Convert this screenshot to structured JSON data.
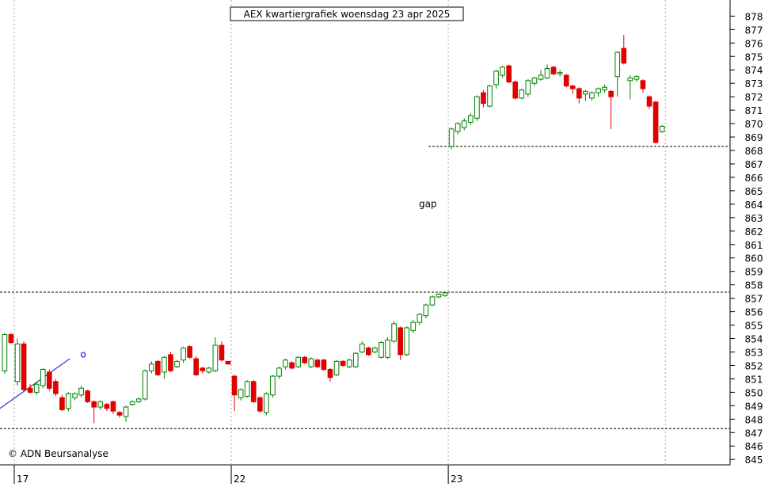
{
  "chart_data": {
    "type": "candlestick",
    "title": "AEX kwartiergrafiek woensdag 23 apr 2025",
    "source": "© ADN Beursanalyse",
    "up_color": "#008000",
    "down_color": "#e00000",
    "xlim": [
      -2.73,
      111.65
    ],
    "ylim": [
      844.6,
      879.2
    ],
    "xticks": [
      {
        "value": -0.5,
        "label": "17"
      },
      {
        "value": 33.5,
        "label": "22"
      },
      {
        "value": 67.5,
        "label": "23"
      }
    ],
    "xgrid": [
      -0.5,
      33.5,
      67.5,
      101.5
    ],
    "yticks": [
      845,
      846,
      847,
      848,
      849,
      850,
      851,
      852,
      853,
      854,
      855,
      856,
      857,
      858,
      859,
      860,
      861,
      862,
      863,
      864,
      865,
      866,
      867,
      868,
      869,
      870,
      871,
      872,
      873,
      874,
      875,
      876,
      877,
      878
    ],
    "x": [
      -2,
      -1,
      0,
      1,
      2,
      3,
      4,
      5,
      6,
      7,
      8,
      9,
      10,
      11,
      12,
      13,
      14,
      15,
      16,
      17,
      18,
      19,
      20,
      21,
      22,
      23,
      24,
      25,
      26,
      27,
      28,
      29,
      30,
      31,
      32,
      33,
      34,
      35,
      36,
      37,
      38,
      39,
      40,
      41,
      42,
      43,
      44,
      45,
      46,
      47,
      48,
      49,
      50,
      51,
      52,
      53,
      54,
      55,
      56,
      57,
      58,
      59,
      60,
      61,
      62,
      63,
      64,
      65,
      66,
      67,
      68,
      69,
      70,
      71,
      72,
      73,
      74,
      75,
      76,
      77,
      78,
      79,
      80,
      81,
      82,
      83,
      84,
      85,
      86,
      87,
      88,
      89,
      90,
      91,
      92,
      93,
      94,
      95,
      96,
      97,
      98,
      99,
      100,
      101
    ],
    "ohlc": [
      [
        851.6,
        854.4,
        851.4,
        854.3
      ],
      [
        854.3,
        854.4,
        853.6,
        853.7
      ],
      [
        850.8,
        854.0,
        850.5,
        853.6
      ],
      [
        853.6,
        853.8,
        850.0,
        850.2
      ],
      [
        850.3,
        850.6,
        849.9,
        850.0
      ],
      [
        850.0,
        850.8,
        849.8,
        850.6
      ],
      [
        850.5,
        851.8,
        850.3,
        851.7
      ],
      [
        851.5,
        851.7,
        850.1,
        850.3
      ],
      [
        850.8,
        851.0,
        849.7,
        849.9
      ],
      [
        849.6,
        849.8,
        848.6,
        848.7
      ],
      [
        848.8,
        850.0,
        848.6,
        849.9
      ],
      [
        849.6,
        850.0,
        849.4,
        849.9
      ],
      [
        849.8,
        850.5,
        849.6,
        850.3
      ],
      [
        850.1,
        850.2,
        849.2,
        849.3
      ],
      [
        849.3,
        849.4,
        847.7,
        848.9
      ],
      [
        848.9,
        849.4,
        848.7,
        849.3
      ],
      [
        849.1,
        849.2,
        848.6,
        848.8
      ],
      [
        849.3,
        849.4,
        848.4,
        848.6
      ],
      [
        848.5,
        848.6,
        848.1,
        848.3
      ],
      [
        848.2,
        849.0,
        847.8,
        848.9
      ],
      [
        849.1,
        849.4,
        849.0,
        849.3
      ],
      [
        849.3,
        849.6,
        849.2,
        849.5
      ],
      [
        849.5,
        851.7,
        849.4,
        851.6
      ],
      [
        851.6,
        852.3,
        851.4,
        852.1
      ],
      [
        852.3,
        852.4,
        851.2,
        851.3
      ],
      [
        851.5,
        852.7,
        851.0,
        852.6
      ],
      [
        852.8,
        853.0,
        851.5,
        851.6
      ],
      [
        851.9,
        852.4,
        851.8,
        852.3
      ],
      [
        852.4,
        853.4,
        852.2,
        853.3
      ],
      [
        853.4,
        853.5,
        852.5,
        852.6
      ],
      [
        852.5,
        852.7,
        851.2,
        851.3
      ],
      [
        851.8,
        851.9,
        851.4,
        851.6
      ],
      [
        851.5,
        851.9,
        851.4,
        851.8
      ],
      [
        851.6,
        854.1,
        851.5,
        853.5
      ],
      [
        853.5,
        853.8,
        852.3,
        852.4
      ],
      [
        852.3,
        852.3,
        852.1,
        852.1
      ],
      [
        851.2,
        851.3,
        848.6,
        849.8
      ],
      [
        849.6,
        850.3,
        849.4,
        850.2
      ],
      [
        849.7,
        850.9,
        849.6,
        850.8
      ],
      [
        850.8,
        850.9,
        849.2,
        849.3
      ],
      [
        849.6,
        849.7,
        848.5,
        848.6
      ],
      [
        848.5,
        850.0,
        848.3,
        849.9
      ],
      [
        849.8,
        851.3,
        849.6,
        851.2
      ],
      [
        851.2,
        851.9,
        851.0,
        851.8
      ],
      [
        851.9,
        852.5,
        851.7,
        852.4
      ],
      [
        852.2,
        852.3,
        851.7,
        851.8
      ],
      [
        851.9,
        852.7,
        851.8,
        852.6
      ],
      [
        852.6,
        852.7,
        852.1,
        852.2
      ],
      [
        851.9,
        852.6,
        851.8,
        852.5
      ],
      [
        852.4,
        852.5,
        851.8,
        851.9
      ],
      [
        852.4,
        852.5,
        851.6,
        851.7
      ],
      [
        851.7,
        851.8,
        850.8,
        851.1
      ],
      [
        851.3,
        852.4,
        851.2,
        852.3
      ],
      [
        852.3,
        852.4,
        851.9,
        852.0
      ],
      [
        851.9,
        852.5,
        851.8,
        852.4
      ],
      [
        851.9,
        853.0,
        851.8,
        852.9
      ],
      [
        853.0,
        853.8,
        852.9,
        853.6
      ],
      [
        853.3,
        853.4,
        852.7,
        852.8
      ],
      [
        853.0,
        853.4,
        852.9,
        853.3
      ],
      [
        852.6,
        853.8,
        852.5,
        853.7
      ],
      [
        852.6,
        854.1,
        852.5,
        853.9
      ],
      [
        853.8,
        855.3,
        853.7,
        855.1
      ],
      [
        854.8,
        854.9,
        852.4,
        852.8
      ],
      [
        852.8,
        854.9,
        852.7,
        854.8
      ],
      [
        854.6,
        855.4,
        854.4,
        855.2
      ],
      [
        855.2,
        855.9,
        855.0,
        855.8
      ],
      [
        855.7,
        856.6,
        855.5,
        856.5
      ],
      [
        856.5,
        857.2,
        856.4,
        857.1
      ],
      [
        857.1,
        857.4,
        857.0,
        857.3
      ],
      [
        857.2,
        857.5,
        857.1,
        857.4
      ],
      [
        868.3,
        869.7,
        868.1,
        869.6
      ],
      [
        869.4,
        870.1,
        869.2,
        870.0
      ],
      [
        869.7,
        870.4,
        869.5,
        870.2
      ],
      [
        870.1,
        870.8,
        869.9,
        870.6
      ],
      [
        870.4,
        872.1,
        870.2,
        872.0
      ],
      [
        872.3,
        872.5,
        871.2,
        871.5
      ],
      [
        871.3,
        872.9,
        871.2,
        872.8
      ],
      [
        872.9,
        874.0,
        872.6,
        873.9
      ],
      [
        873.6,
        874.3,
        873.4,
        874.2
      ],
      [
        874.3,
        874.4,
        873.0,
        873.1
      ],
      [
        873.1,
        873.2,
        871.8,
        871.9
      ],
      [
        871.9,
        872.6,
        871.8,
        872.5
      ],
      [
        872.2,
        873.3,
        872.0,
        873.2
      ],
      [
        873.0,
        873.5,
        872.8,
        873.4
      ],
      [
        873.3,
        874.0,
        873.2,
        873.6
      ],
      [
        873.4,
        874.4,
        873.3,
        874.1
      ],
      [
        874.2,
        874.3,
        873.6,
        873.7
      ],
      [
        873.7,
        874.0,
        873.5,
        873.8
      ],
      [
        873.6,
        873.7,
        872.7,
        872.8
      ],
      [
        872.8,
        872.9,
        872.2,
        872.6
      ],
      [
        872.6,
        872.7,
        871.5,
        871.9
      ],
      [
        872.2,
        872.5,
        871.7,
        872.4
      ],
      [
        871.9,
        872.4,
        871.7,
        872.3
      ],
      [
        872.3,
        872.7,
        872.0,
        872.6
      ],
      [
        872.5,
        872.9,
        872.3,
        872.7
      ],
      [
        872.4,
        872.5,
        869.6,
        872.0
      ],
      [
        873.5,
        875.4,
        872.0,
        875.3
      ],
      [
        875.6,
        876.6,
        874.4,
        874.5
      ],
      [
        873.2,
        873.6,
        871.8,
        873.4
      ],
      [
        873.3,
        873.6,
        873.1,
        873.5
      ],
      [
        873.2,
        873.3,
        872.3,
        872.6
      ],
      [
        872.0,
        872.1,
        871.1,
        871.3
      ],
      [
        871.6,
        871.7,
        868.5,
        868.6
      ],
      [
        869.4,
        869.9,
        869.3,
        869.8
      ]
    ],
    "levels": [
      {
        "value": 847.3,
        "from": -2.73
      },
      {
        "value": 857.45,
        "from": -2.73
      },
      {
        "value": 868.3,
        "from": 64.4
      }
    ],
    "trendline": {
      "x": [
        -2.73,
        8.2
      ],
      "y": [
        848.8,
        852.5
      ],
      "color": "#0000cc"
    },
    "annotations": [
      {
        "text": "gap",
        "x": 64.3,
        "y": 863.8,
        "color": "#000000"
      },
      {
        "text": "o",
        "x": 10.3,
        "y": 852.6,
        "color": "#0000cc"
      }
    ]
  }
}
